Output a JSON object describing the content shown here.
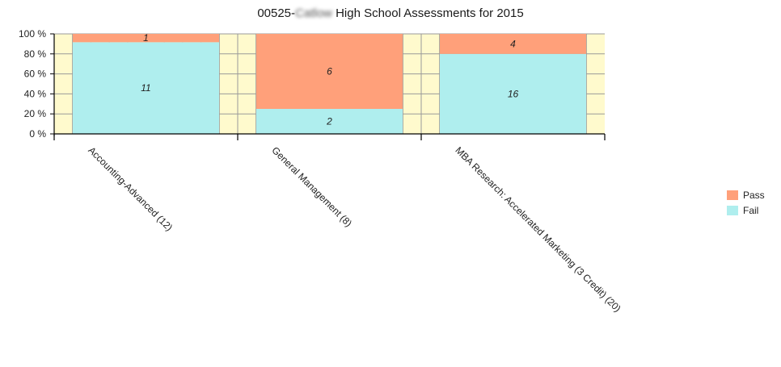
{
  "chart_data": {
    "type": "bar",
    "stacked_percent": true,
    "title_prefix": "00525-",
    "title_redacted": "Catlow",
    "title_suffix": "High School Assessments for 2015",
    "categories": [
      "Accounting-Advanced (12)",
      "General Management (8)",
      "MBA Research: Accelerated Marketing (3 Credit) (20)"
    ],
    "series": [
      {
        "name": "Pass",
        "color": "#FFA07A",
        "values": [
          1,
          6,
          4
        ]
      },
      {
        "name": "Fail",
        "color": "#AFEEEE",
        "values": [
          11,
          2,
          16
        ]
      }
    ],
    "y_ticks": [
      "0 %",
      "20 %",
      "40 %",
      "60 %",
      "80 %",
      "100 %"
    ],
    "ylim": [
      0,
      100
    ],
    "plot_background": "#FFFACD",
    "grid": true,
    "legend_position": "right"
  }
}
